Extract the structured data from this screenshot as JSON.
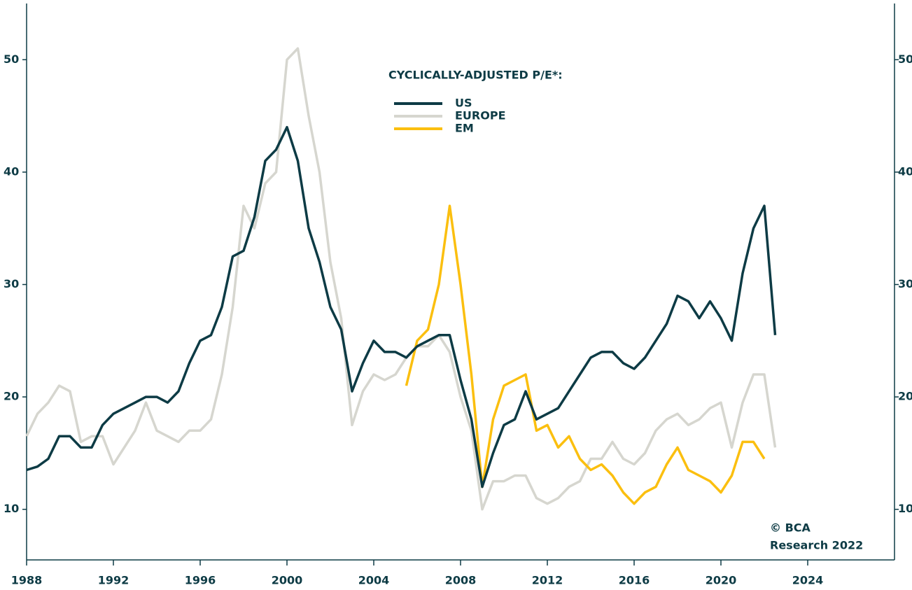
{
  "chart_data": {
    "type": "line",
    "legend_title": "CYCLICALLY-ADJUSTED P/E*:",
    "annotation": [
      "© BCA",
      "Research 2022"
    ],
    "x": [
      1988,
      1988.5,
      1989,
      1989.5,
      1990,
      1990.5,
      1991,
      1991.5,
      1992,
      1992.5,
      1993,
      1993.5,
      1994,
      1994.5,
      1995,
      1995.5,
      1996,
      1996.5,
      1997,
      1997.5,
      1998,
      1998.5,
      1999,
      1999.5,
      2000,
      2000.5,
      2001,
      2001.5,
      2002,
      2002.5,
      2003,
      2003.5,
      2004,
      2004.5,
      2005,
      2005.5,
      2006,
      2006.5,
      2007,
      2007.5,
      2008,
      2008.5,
      2009,
      2009.5,
      2010,
      2010.5,
      2011,
      2011.5,
      2012,
      2012.5,
      2013,
      2013.5,
      2014,
      2014.5,
      2015,
      2015.5,
      2016,
      2016.5,
      2017,
      2017.5,
      2018,
      2018.5,
      2019,
      2019.5,
      2020,
      2020.5,
      2021,
      2021.5,
      2022,
      2022.5
    ],
    "series": [
      {
        "name": "EUROPE",
        "color": "#d6d6cf",
        "values": [
          16.5,
          18.5,
          19.5,
          21,
          20.5,
          16,
          16.5,
          16.5,
          14,
          15.5,
          17,
          19.5,
          17,
          16.5,
          16,
          17,
          17,
          18,
          22,
          28,
          37,
          35,
          39,
          40,
          50,
          51,
          45,
          40,
          32,
          27,
          17.5,
          20.5,
          22,
          21.5,
          22,
          23.5,
          24.5,
          24.5,
          25.5,
          24,
          20,
          17,
          10,
          12.5,
          12.5,
          13,
          13,
          11,
          10.5,
          11,
          12,
          12.5,
          14.5,
          14.5,
          16,
          14.5,
          14,
          15,
          17,
          18,
          18.5,
          17.5,
          18,
          19,
          19.5,
          15.5,
          19.5,
          22,
          22,
          15.5
        ]
      },
      {
        "name": "EM",
        "color": "#fbbf0f",
        "values": [
          null,
          null,
          null,
          null,
          null,
          null,
          null,
          null,
          null,
          null,
          null,
          null,
          null,
          null,
          null,
          null,
          null,
          null,
          null,
          null,
          null,
          null,
          null,
          null,
          null,
          null,
          null,
          null,
          null,
          null,
          null,
          null,
          null,
          null,
          null,
          21,
          25,
          26,
          30,
          37,
          30,
          22,
          12,
          18,
          21,
          21.5,
          22,
          17,
          17.5,
          15.5,
          16.5,
          14.5,
          13.5,
          14,
          13,
          11.5,
          10.5,
          11.5,
          12,
          14,
          15.5,
          13.5,
          13,
          12.5,
          11.5,
          13,
          16,
          16,
          14.5,
          null
        ]
      },
      {
        "name": "US",
        "color": "#0d3b45",
        "values": [
          13.5,
          13.8,
          14.5,
          16.5,
          16.5,
          15.5,
          15.5,
          17.5,
          18.5,
          19,
          19.5,
          20,
          20,
          19.5,
          20.5,
          23,
          25,
          25.5,
          28,
          32.5,
          33,
          36,
          41,
          42,
          44,
          41,
          35,
          32,
          28,
          26,
          20.5,
          23,
          25,
          24,
          24,
          23.5,
          24.5,
          25,
          25.5,
          25.5,
          21.5,
          18,
          12,
          15,
          17.5,
          18,
          20.5,
          18,
          18.5,
          19,
          20.5,
          22,
          23.5,
          24,
          24,
          23,
          22.5,
          23.5,
          25,
          26.5,
          29,
          28.5,
          27,
          28.5,
          27,
          25,
          31,
          35,
          37,
          25.5
        ]
      }
    ],
    "legend_order": [
      "US",
      "EUROPE",
      "EM"
    ],
    "xlim": [
      1988,
      2028
    ],
    "xticks": [
      1988,
      1992,
      1996,
      2000,
      2004,
      2008,
      2012,
      2016,
      2020,
      2024
    ],
    "ylim": [
      5.5,
      55
    ],
    "yticks": [
      10,
      20,
      30,
      40,
      50
    ],
    "y2lim": [
      5.5,
      55
    ],
    "y2ticks": [
      10,
      20,
      30,
      40,
      50
    ],
    "grid": false
  }
}
